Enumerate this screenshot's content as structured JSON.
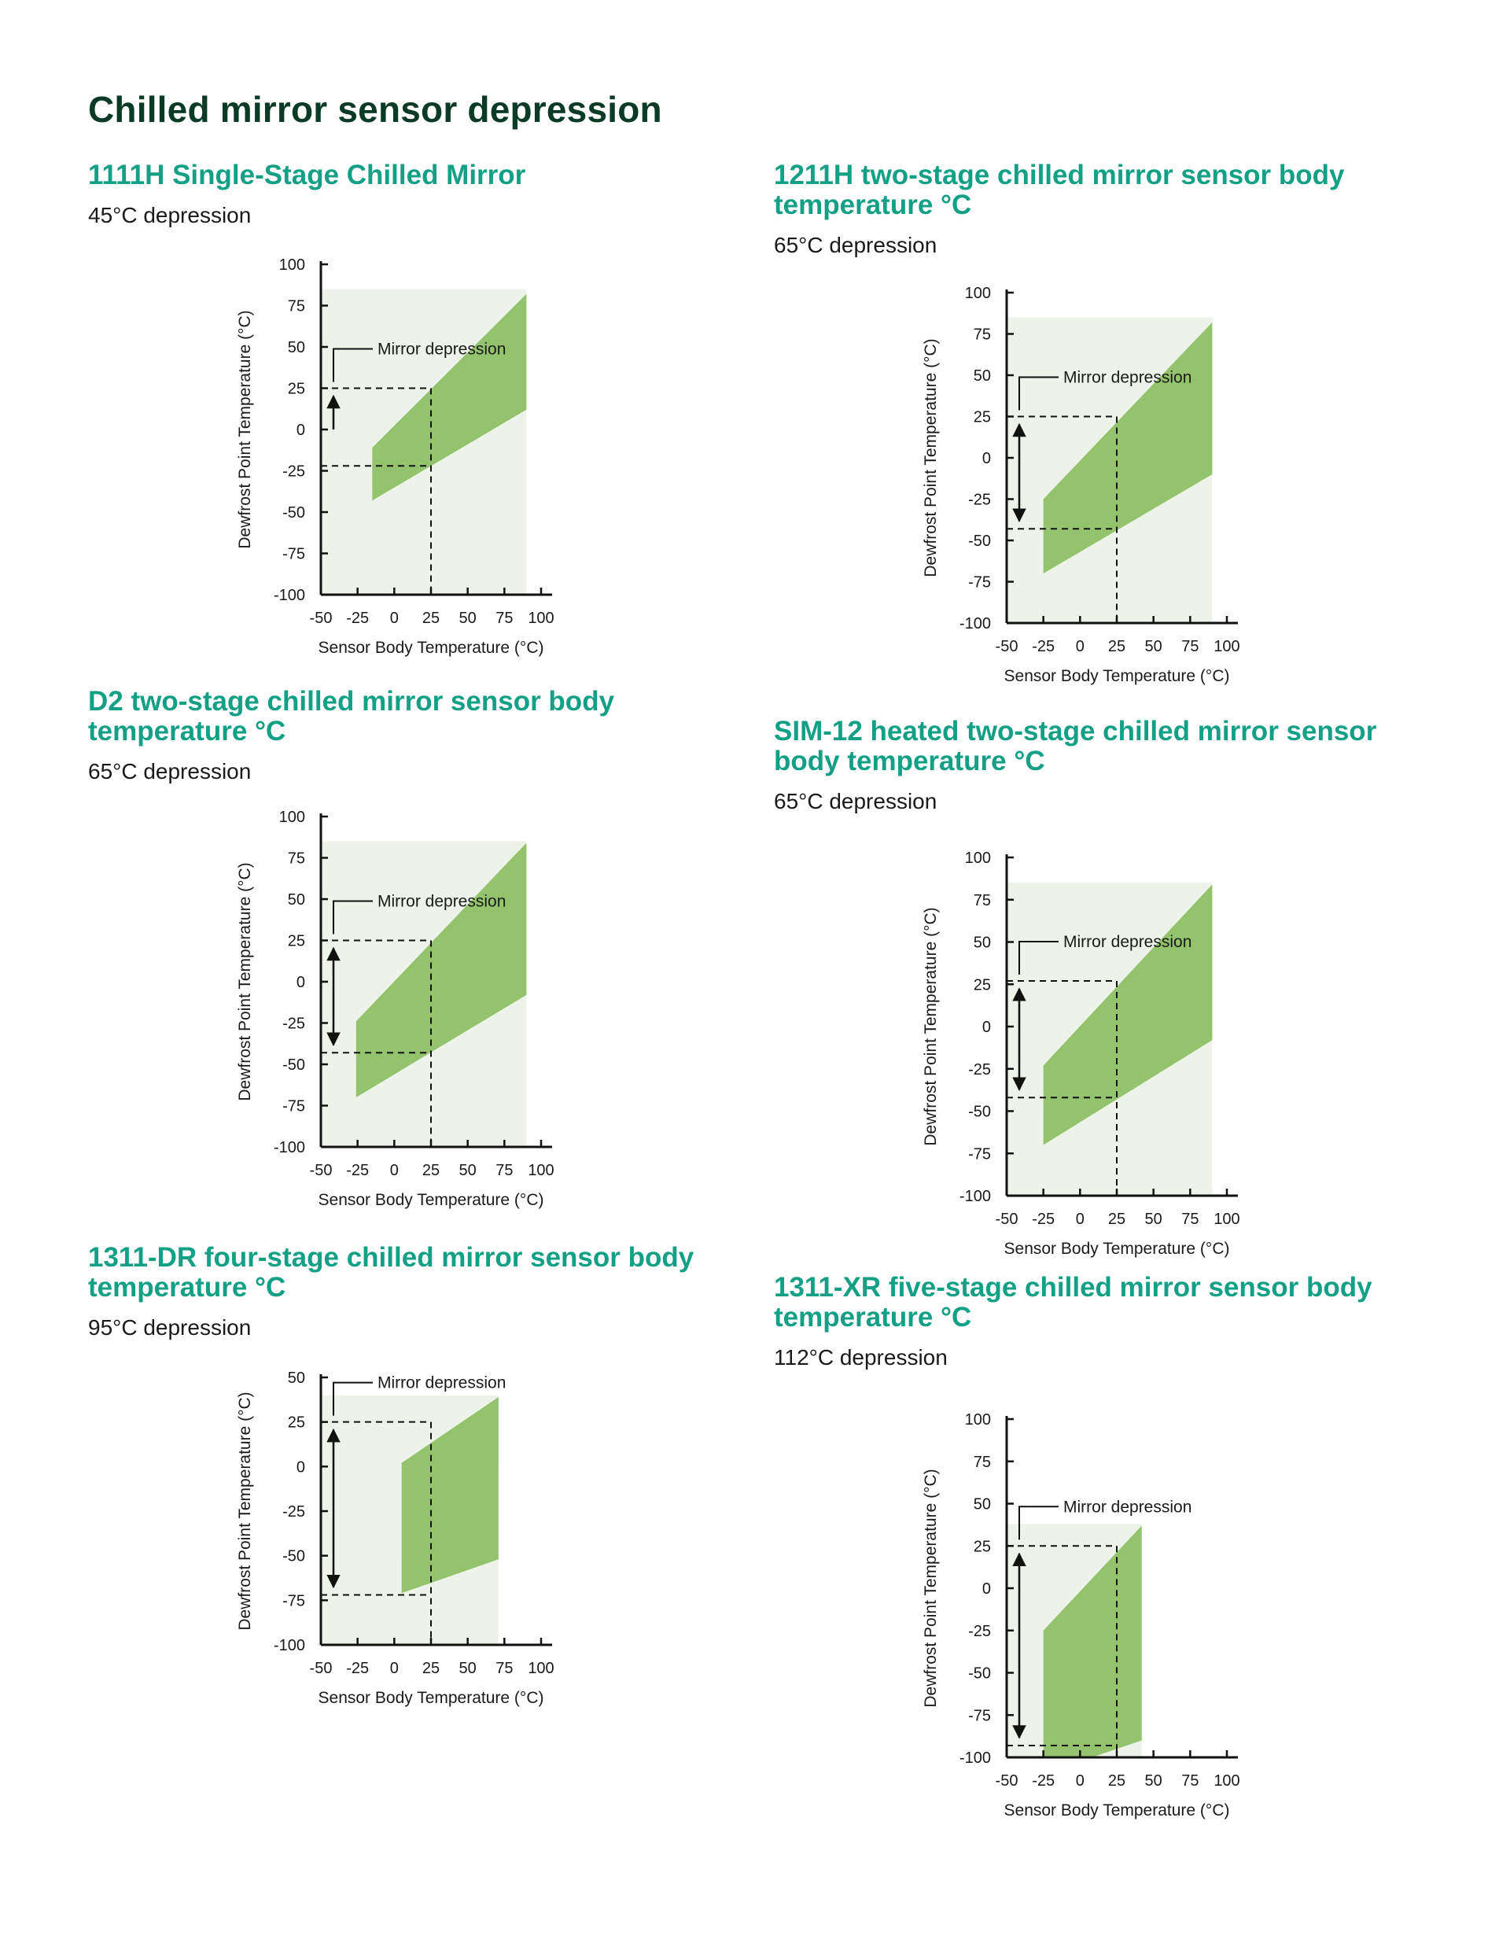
{
  "page": {
    "title": "Chilled mirror sensor depression"
  },
  "colors": {
    "title": "#0b3b26",
    "subtitle": "#13a085",
    "band": "#93c36c",
    "plot_bg": "#edf3e8"
  },
  "chart_data": [
    {
      "type": "area",
      "title": "1111H Single-Stage Chilled Mirror",
      "subtitle": "45°C depression",
      "xlabel": "Sensor Body Temperature (°C)",
      "ylabel": "Dewfrost Point Temperature (°C)",
      "annotation": "Mirror depression",
      "xticks": [
        -50,
        -25,
        0,
        25,
        50,
        75,
        100
      ],
      "yticks": [
        100,
        75,
        50,
        25,
        0,
        -25,
        -50,
        -75,
        -100
      ],
      "xlim": [
        -50,
        100
      ],
      "ylim": [
        -100,
        100
      ],
      "band": [
        [
          -15,
          -11
        ],
        [
          90,
          82
        ],
        [
          90,
          12
        ],
        [
          -15,
          -43
        ]
      ],
      "region_x": [
        -50,
        90
      ],
      "region_y": [
        -100,
        85
      ],
      "ref_x": 25,
      "ref_upper": 25,
      "ref_lower": -22,
      "arrow": "up",
      "grid": false
    },
    {
      "type": "area",
      "title": "1211H two-stage chilled mirror sensor body temperature °C",
      "subtitle": "65°C depression",
      "xlabel": "Sensor Body Temperature (°C)",
      "ylabel": "Dewfrost Point Temperature (°C)",
      "annotation": "Mirror depression",
      "xticks": [
        -50,
        -25,
        0,
        25,
        50,
        75,
        100
      ],
      "yticks": [
        100,
        75,
        50,
        25,
        0,
        -25,
        -50,
        -75,
        -100
      ],
      "xlim": [
        -50,
        100
      ],
      "ylim": [
        -100,
        100
      ],
      "band": [
        [
          -25,
          -25
        ],
        [
          90,
          82
        ],
        [
          90,
          -10
        ],
        [
          -25,
          -70
        ]
      ],
      "region_x": [
        -50,
        90
      ],
      "region_y": [
        -100,
        85
      ],
      "ref_x": 25,
      "ref_upper": 25,
      "ref_lower": -43,
      "arrow": "both",
      "grid": false
    },
    {
      "type": "area",
      "title": "D2 two-stage chilled mirror sensor body temperature °C",
      "subtitle": "65°C depression",
      "xlabel": "Sensor Body Temperature (°C)",
      "ylabel": "Dewfrost Point Temperature (°C)",
      "annotation": "Mirror depression",
      "xticks": [
        -50,
        -25,
        0,
        25,
        50,
        75,
        100
      ],
      "yticks": [
        100,
        75,
        50,
        25,
        0,
        -25,
        -50,
        -75,
        -100
      ],
      "xlim": [
        -50,
        100
      ],
      "ylim": [
        -100,
        100
      ],
      "band": [
        [
          -26,
          -24
        ],
        [
          90,
          84
        ],
        [
          90,
          -8
        ],
        [
          -26,
          -70
        ]
      ],
      "region_x": [
        -50,
        90
      ],
      "region_y": [
        -100,
        85
      ],
      "ref_x": 25,
      "ref_upper": 25,
      "ref_lower": -43,
      "arrow": "both",
      "grid": false
    },
    {
      "type": "area",
      "title": "SIM-12 heated two-stage chilled mirror sensor body temperature °C",
      "subtitle": "65°C depression",
      "xlabel": "Sensor Body Temperature (°C)",
      "ylabel": "Dewfrost Point Temperature (°C)",
      "annotation": "Mirror depression",
      "xticks": [
        -50,
        -25,
        0,
        25,
        50,
        75,
        100
      ],
      "yticks": [
        100,
        75,
        50,
        25,
        0,
        -25,
        -50,
        -75,
        -100
      ],
      "xlim": [
        -50,
        100
      ],
      "ylim": [
        -100,
        100
      ],
      "band": [
        [
          -25,
          -23
        ],
        [
          90,
          84
        ],
        [
          90,
          -8
        ],
        [
          -25,
          -70
        ]
      ],
      "region_x": [
        -50,
        90
      ],
      "region_y": [
        -100,
        85
      ],
      "ref_x": 25,
      "ref_upper": 27,
      "ref_lower": -42,
      "arrow": "both",
      "grid": false
    },
    {
      "type": "area",
      "title": "1311-DR four-stage chilled mirror sensor body temperature °C",
      "subtitle": "95°C depression",
      "xlabel": "Sensor Body Temperature (°C)",
      "ylabel": "Dewfrost Point Temperature (°C)",
      "annotation": "Mirror depression",
      "xticks": [
        -50,
        -25,
        0,
        25,
        50,
        75,
        100
      ],
      "yticks": [
        50,
        25,
        0,
        -25,
        -50,
        -75,
        -100
      ],
      "xlim": [
        -50,
        100
      ],
      "ylim": [
        -100,
        50
      ],
      "band": [
        [
          5,
          2
        ],
        [
          71,
          39
        ],
        [
          71,
          -52
        ],
        [
          5,
          -71
        ]
      ],
      "region_x": [
        -50,
        71
      ],
      "region_y": [
        -100,
        40
      ],
      "ref_x": 25,
      "ref_upper": 25,
      "ref_lower": -72,
      "arrow": "both",
      "grid": false
    },
    {
      "type": "area",
      "title": "1311-XR five-stage chilled mirror sensor body temperature °C",
      "subtitle": "112°C depression",
      "xlabel": "Sensor Body Temperature (°C)",
      "ylabel": "Dewfrost Point Temperature (°C)",
      "annotation": "Mirror depression",
      "xticks": [
        -50,
        -25,
        0,
        25,
        50,
        75,
        100
      ],
      "yticks": [
        100,
        75,
        50,
        25,
        0,
        -25,
        -50,
        -75,
        -100
      ],
      "xlim": [
        -50,
        100
      ],
      "ylim": [
        -100,
        100
      ],
      "band": [
        [
          -25,
          -25
        ],
        [
          42,
          37
        ],
        [
          42,
          -90
        ],
        [
          8,
          -100
        ],
        [
          -25,
          -100
        ]
      ],
      "region_x": [
        -50,
        42
      ],
      "region_y": [
        -100,
        38
      ],
      "ref_x": 25,
      "ref_upper": 25,
      "ref_lower": -93,
      "arrow": "both",
      "grid": false
    }
  ]
}
